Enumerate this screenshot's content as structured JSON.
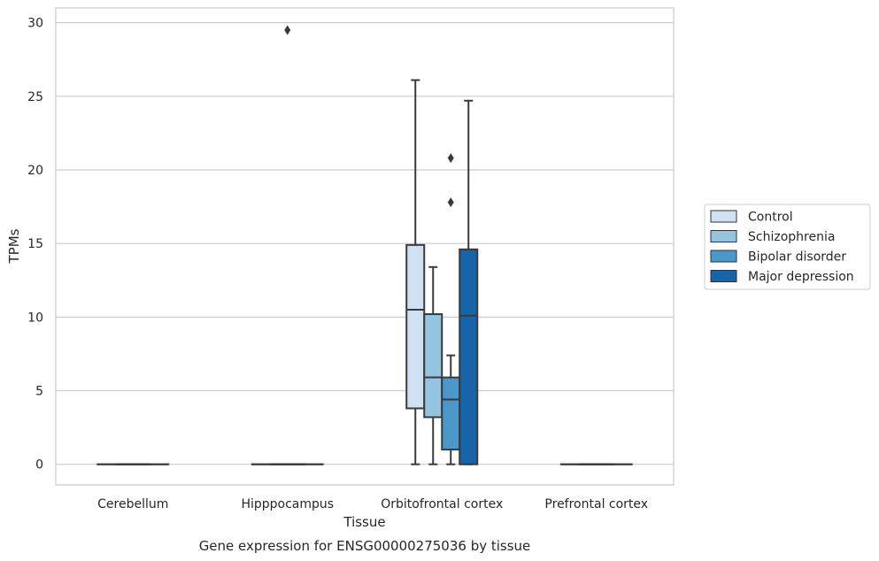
{
  "caption": "Gene expression for ENSG00000275036 by tissue",
  "chart_data": {
    "type": "box",
    "xlabel": "Tissue",
    "ylabel": "TPMs",
    "ylim": [
      -1.4,
      31
    ],
    "yticks": [
      0,
      5,
      10,
      15,
      20,
      25,
      30
    ],
    "grid": true,
    "legend_position": "right, outside plot",
    "categories": [
      "Cerebellum",
      "Hipppocampus",
      "Orbitofrontal cortex",
      "Prefrontal cortex"
    ],
    "series": [
      {
        "name": "Control",
        "color": "#d0e1f2"
      },
      {
        "name": "Schizophrenia",
        "color": "#94c4df"
      },
      {
        "name": "Bipolar disorder",
        "color": "#4a98c9"
      },
      {
        "name": "Major depression",
        "color": "#1764ab"
      }
    ],
    "boxes": [
      {
        "category": 0,
        "series": "all",
        "min": 0,
        "q1": 0,
        "median": 0,
        "q3": 0,
        "max": 0,
        "outliers": []
      },
      {
        "category": 1,
        "series": "all",
        "min": 0,
        "q1": 0,
        "median": 0,
        "q3": 0,
        "max": 0,
        "outliers": [
          29.5
        ]
      },
      {
        "category": 2,
        "series": 0,
        "min": 0,
        "q1": 3.8,
        "median": 10.5,
        "q3": 14.9,
        "max": 26.1,
        "outliers": []
      },
      {
        "category": 2,
        "series": 1,
        "min": 0,
        "q1": 3.2,
        "median": 5.9,
        "q3": 10.2,
        "max": 13.4,
        "outliers": []
      },
      {
        "category": 2,
        "series": 2,
        "min": 0,
        "q1": 1.0,
        "median": 4.4,
        "q3": 5.9,
        "max": 7.4,
        "outliers": [
          20.8,
          17.8
        ]
      },
      {
        "category": 2,
        "series": 3,
        "min": 0,
        "q1": 0,
        "median": 10.1,
        "q3": 14.6,
        "max": 24.7,
        "outliers": []
      },
      {
        "category": 3,
        "series": "all",
        "min": 0,
        "q1": 0,
        "median": 0,
        "q3": 0,
        "max": 0,
        "outliers": []
      }
    ]
  }
}
